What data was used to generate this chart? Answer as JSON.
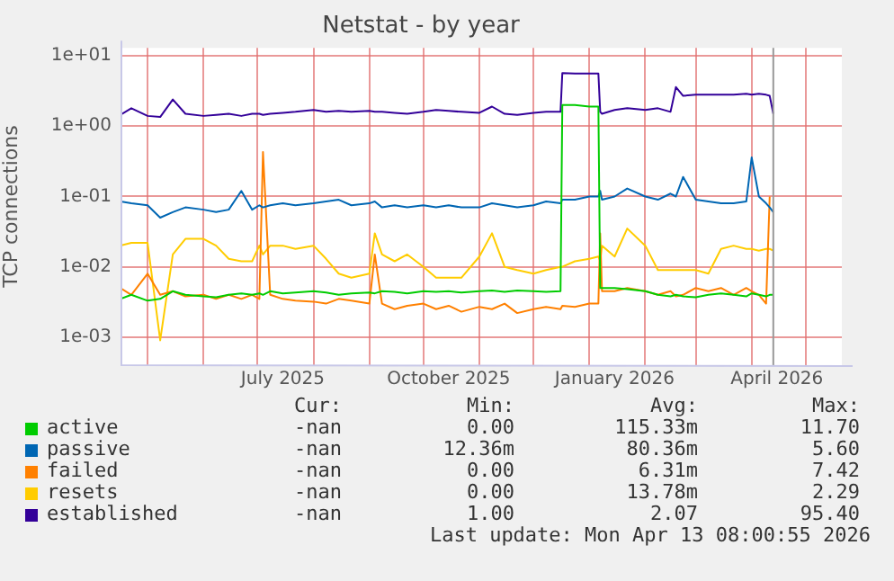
{
  "chart_data": {
    "type": "line",
    "title": "Netstat - by year",
    "ylabel": "TCP connections",
    "log": "y",
    "grid": true,
    "legend": "bottom",
    "marker": "none",
    "x": [
      "2025-04-16",
      "2025-04-22",
      "2025-05-01",
      "2025-05-08",
      "2025-05-15",
      "2025-05-22",
      "2025-06-01",
      "2025-06-08",
      "2025-06-15",
      "2025-06-22",
      "2025-06-28",
      "2025-07-02",
      "2025-07-04",
      "2025-07-08",
      "2025-07-15",
      "2025-07-22",
      "2025-08-01",
      "2025-08-08",
      "2025-08-15",
      "2025-08-22",
      "2025-09-01",
      "2025-09-04",
      "2025-09-08",
      "2025-09-15",
      "2025-09-22",
      "2025-10-01",
      "2025-10-08",
      "2025-10-15",
      "2025-10-22",
      "2025-11-01",
      "2025-11-08",
      "2025-11-15",
      "2025-11-22",
      "2025-12-01",
      "2025-12-08",
      "2025-12-16",
      "2025-12-17",
      "2025-12-24",
      "2026-01-01",
      "2026-01-06",
      "2026-01-07",
      "2026-01-08",
      "2026-01-15",
      "2026-01-22",
      "2026-02-01",
      "2026-02-08",
      "2026-02-15",
      "2026-02-18",
      "2026-02-22",
      "2026-03-01",
      "2026-03-08",
      "2026-03-15",
      "2026-03-22",
      "2026-03-29",
      "2026-04-01",
      "2026-04-05",
      "2026-04-09",
      "2026-04-11",
      "2026-04-13"
    ],
    "xlim": [
      "2025-04-16",
      "2026-05-21"
    ],
    "xticks": [
      {
        "value": "2025-05-01",
        "label": null
      },
      {
        "value": "2025-06-01",
        "label": null
      },
      {
        "value": "2025-07-01",
        "label": null
      },
      {
        "value": "2025-07-15",
        "label": "July 2025"
      },
      {
        "value": "2025-08-01",
        "label": null
      },
      {
        "value": "2025-09-01",
        "label": null
      },
      {
        "value": "2025-10-01",
        "label": null
      },
      {
        "value": "2025-10-15",
        "label": "October 2025"
      },
      {
        "value": "2025-11-01",
        "label": null
      },
      {
        "value": "2025-12-01",
        "label": null
      },
      {
        "value": "2026-01-01",
        "label": null
      },
      {
        "value": "2026-01-15",
        "label": "January 2026"
      },
      {
        "value": "2026-02-01",
        "label": null
      },
      {
        "value": "2026-03-01",
        "label": null
      },
      {
        "value": "2026-04-01",
        "label": null
      },
      {
        "value": "2026-04-15",
        "label": "April 2026"
      },
      {
        "value": "2026-05-01",
        "label": null
      }
    ],
    "ylim": [
      0.0004,
      13
    ],
    "yticks": [
      {
        "value": 0.001,
        "label": "1e-03"
      },
      {
        "value": 0.01,
        "label": "1e-02"
      },
      {
        "value": 0.1,
        "label": "1e-01"
      },
      {
        "value": 1,
        "label": "1e+00"
      },
      {
        "value": 10,
        "label": "1e+01"
      }
    ],
    "ref_lines": [
      {
        "axis": "x",
        "value": "2026-04-13",
        "label": null,
        "color": "#999999"
      }
    ],
    "series": [
      {
        "name": "active",
        "color": "#00cc00",
        "values": [
          0.0035,
          0.004,
          0.0033,
          0.0035,
          0.0045,
          0.004,
          0.0038,
          0.0037,
          0.004,
          0.0042,
          0.004,
          0.0042,
          0.004,
          0.0045,
          0.0042,
          0.0043,
          0.0045,
          0.0043,
          0.004,
          0.0042,
          0.0043,
          0.0042,
          0.0045,
          0.0044,
          0.0042,
          0.0045,
          0.0044,
          0.0045,
          0.0043,
          0.0045,
          0.0046,
          0.0044,
          0.0046,
          0.0045,
          0.0044,
          0.0045,
          2.0,
          2.0,
          1.9,
          1.9,
          0.005,
          0.005,
          0.005,
          0.0048,
          0.0045,
          0.004,
          0.0038,
          0.004,
          0.0038,
          0.0037,
          0.004,
          0.0042,
          0.004,
          0.0038,
          0.0042,
          0.004,
          0.0038,
          0.004,
          0.004
        ]
      },
      {
        "name": "passive",
        "color": "#0066b3",
        "values": [
          0.085,
          0.08,
          0.075,
          0.05,
          0.06,
          0.07,
          0.065,
          0.06,
          0.065,
          0.12,
          0.065,
          0.075,
          0.07,
          0.075,
          0.08,
          0.075,
          0.08,
          0.085,
          0.09,
          0.075,
          0.08,
          0.085,
          0.07,
          0.075,
          0.07,
          0.075,
          0.07,
          0.075,
          0.07,
          0.07,
          0.08,
          0.075,
          0.07,
          0.075,
          0.085,
          0.08,
          0.09,
          0.09,
          0.1,
          0.1,
          0.12,
          0.09,
          0.1,
          0.13,
          0.1,
          0.09,
          0.11,
          0.1,
          0.19,
          0.09,
          0.085,
          0.08,
          0.08,
          0.085,
          0.36,
          0.1,
          0.08,
          0.07,
          0.06
        ]
      },
      {
        "name": "failed",
        "color": "#ff8000",
        "values": [
          0.005,
          0.004,
          0.008,
          0.004,
          0.0045,
          0.0038,
          0.004,
          0.0035,
          0.004,
          0.0035,
          0.004,
          0.0035,
          0.43,
          0.004,
          0.0035,
          0.0033,
          0.0032,
          0.003,
          0.0035,
          0.0033,
          0.003,
          0.015,
          0.003,
          0.0025,
          0.0028,
          0.003,
          0.0025,
          0.0028,
          0.0023,
          0.0027,
          0.0025,
          0.003,
          0.0022,
          0.0025,
          0.0027,
          0.0025,
          0.0028,
          0.0027,
          0.003,
          0.003,
          0.03,
          0.0045,
          0.0045,
          0.005,
          0.0045,
          0.004,
          0.0045,
          0.0038,
          0.004,
          0.005,
          0.0045,
          0.005,
          0.004,
          0.005,
          0.0045,
          0.004,
          0.003,
          0.1,
          null
        ]
      },
      {
        "name": "resets",
        "color": "#ffcc00",
        "values": [
          0.02,
          0.022,
          0.022,
          0.0009,
          0.015,
          0.025,
          0.025,
          0.02,
          0.013,
          0.012,
          0.012,
          0.02,
          0.015,
          0.02,
          0.02,
          0.018,
          0.02,
          0.013,
          0.008,
          0.007,
          0.008,
          0.03,
          0.015,
          0.012,
          0.015,
          0.01,
          0.007,
          0.007,
          0.007,
          0.014,
          0.03,
          0.01,
          0.009,
          0.008,
          0.009,
          0.01,
          0.01,
          0.012,
          0.013,
          0.014,
          0.012,
          0.02,
          0.014,
          0.035,
          0.02,
          0.009,
          0.009,
          0.009,
          0.009,
          0.009,
          0.008,
          0.018,
          0.02,
          0.018,
          0.018,
          0.017,
          0.018,
          0.018,
          0.017
        ]
      },
      {
        "name": "established",
        "color": "#330099",
        "values": [
          1.45,
          1.8,
          1.4,
          1.35,
          2.4,
          1.5,
          1.4,
          1.45,
          1.5,
          1.4,
          1.5,
          1.5,
          1.45,
          1.5,
          1.55,
          1.6,
          1.7,
          1.6,
          1.65,
          1.6,
          1.65,
          1.6,
          1.6,
          1.55,
          1.5,
          1.6,
          1.7,
          1.65,
          1.6,
          1.55,
          1.9,
          1.5,
          1.45,
          1.55,
          1.6,
          1.6,
          5.7,
          5.6,
          5.6,
          5.6,
          1.6,
          1.5,
          1.7,
          1.8,
          1.7,
          1.8,
          1.6,
          3.6,
          2.7,
          2.8,
          2.8,
          2.8,
          2.8,
          2.9,
          2.8,
          2.9,
          2.8,
          2.7,
          1.5
        ]
      }
    ],
    "annotations": [
      "Cur:",
      "Min:",
      "Avg:",
      "Max:",
      "-nan",
      "0.00",
      "115.33m",
      "11.70",
      "-nan",
      "12.36m",
      "80.36m",
      "5.60",
      "-nan",
      "0.00",
      "6.31m",
      "7.42",
      "-nan",
      "0.00",
      "13.78m",
      "2.29",
      "-nan",
      "1.00",
      "2.07",
      "95.40",
      "Last update: Mon Apr 13 08:00:55 2026"
    ]
  }
}
